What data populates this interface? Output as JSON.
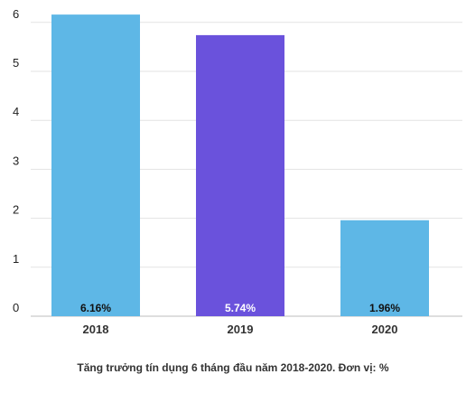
{
  "chart_data": {
    "type": "bar",
    "categories": [
      "2018",
      "2019",
      "2020"
    ],
    "values": [
      6.16,
      5.74,
      1.96
    ],
    "data_labels": [
      "6.16%",
      "5.74%",
      "1.96%"
    ],
    "bar_colors": [
      "#5eb7e6",
      "#6a52dc",
      "#5eb7e6"
    ],
    "label_colors": [
      "#111111",
      "#ffffff",
      "#111111"
    ],
    "yticks": [
      "0",
      "1",
      "2",
      "3",
      "4",
      "5",
      "6"
    ],
    "ylim": [
      0,
      6.3
    ],
    "grid": true,
    "caption": "Tăng trưởng tín dụng 6 tháng đầu năm 2018-2020. Đơn vị: %"
  }
}
